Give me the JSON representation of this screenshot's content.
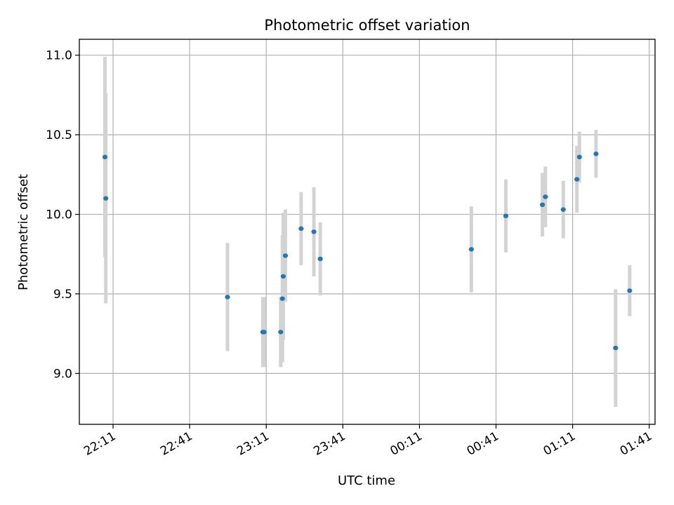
{
  "chart_data": {
    "type": "scatter",
    "title": "Photometric offset variation",
    "xlabel": "UTC time",
    "ylabel": "Photometric offset",
    "x_axis_type": "time",
    "x_tick_labels": [
      "22:11",
      "22:41",
      "23:11",
      "23:41",
      "00:11",
      "00:41",
      "01:11",
      "01:41"
    ],
    "x_tick_minutes_after_2211": [
      0,
      30,
      60,
      90,
      120,
      150,
      180,
      210
    ],
    "xlim_labels": [
      "22:07",
      "01:42"
    ],
    "y_ticks": [
      9.0,
      9.5,
      10.0,
      10.5,
      11.0
    ],
    "y_tick_labels": [
      "9.0",
      "9.5",
      "10.0",
      "10.5",
      "11.0"
    ],
    "ylim": [
      8.68,
      11.1
    ],
    "grid": true,
    "colors": {
      "point": "#1f77b4",
      "errorbar": "#d3d3d3",
      "grid": "#b0b0b0"
    },
    "series": [
      {
        "points": [
          {
            "x": "22:07:50",
            "y": 10.36,
            "err": 0.63
          },
          {
            "x": "22:08:10",
            "y": 10.1,
            "err": 0.66
          },
          {
            "x": "22:55:50",
            "y": 9.48,
            "err": 0.34
          },
          {
            "x": "23:09:40",
            "y": 9.26,
            "err": 0.22
          },
          {
            "x": "23:10:10",
            "y": 9.26,
            "err": 0.22
          },
          {
            "x": "23:16:40",
            "y": 9.26,
            "err": 0.22
          },
          {
            "x": "23:17:20",
            "y": 9.47,
            "err": 0.4
          },
          {
            "x": "23:17:40",
            "y": 9.61,
            "err": 0.4
          },
          {
            "x": "23:18:30",
            "y": 9.74,
            "err": 0.29
          },
          {
            "x": "23:24:40",
            "y": 9.91,
            "err": 0.23
          },
          {
            "x": "23:29:40",
            "y": 9.89,
            "err": 0.28
          },
          {
            "x": "23:32:10",
            "y": 9.72,
            "err": 0.23
          },
          {
            "x": "00:31:20",
            "y": 9.78,
            "err": 0.27
          },
          {
            "x": "00:44:50",
            "y": 9.99,
            "err": 0.23
          },
          {
            "x": "00:59:10",
            "y": 10.06,
            "err": 0.2
          },
          {
            "x": "01:00:20",
            "y": 10.11,
            "err": 0.19
          },
          {
            "x": "01:07:20",
            "y": 10.03,
            "err": 0.18
          },
          {
            "x": "01:12:40",
            "y": 10.22,
            "err": 0.21
          },
          {
            "x": "01:13:40",
            "y": 10.36,
            "err": 0.16
          },
          {
            "x": "01:20:10",
            "y": 10.38,
            "err": 0.15
          },
          {
            "x": "01:27:50",
            "y": 9.16,
            "err": 0.37
          },
          {
            "x": "01:33:20",
            "y": 9.52,
            "err": 0.16
          }
        ]
      }
    ]
  }
}
